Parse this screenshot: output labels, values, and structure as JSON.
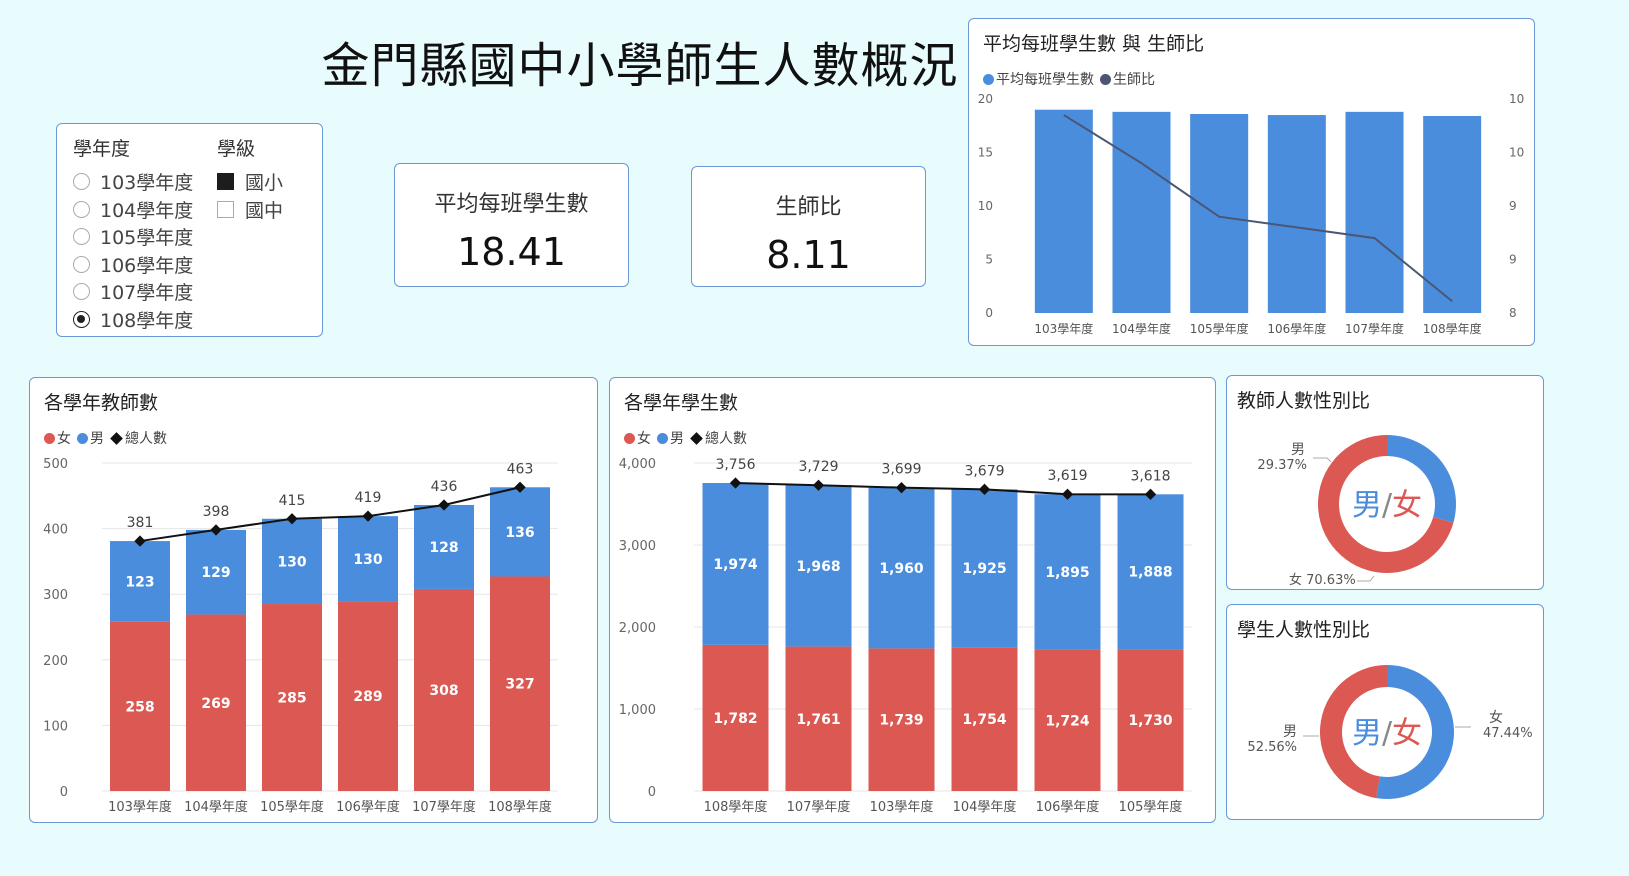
{
  "title": "金門縣國中小學師生人數概況",
  "slicer": {
    "year_header": "學年度",
    "years": [
      {
        "label": "103學年度",
        "selected": false
      },
      {
        "label": "104學年度",
        "selected": false
      },
      {
        "label": "105學年度",
        "selected": false
      },
      {
        "label": "106學年度",
        "selected": false
      },
      {
        "label": "107學年度",
        "selected": false
      },
      {
        "label": "108學年度",
        "selected": true
      }
    ],
    "level_header": "學級",
    "levels": [
      {
        "label": "國小",
        "checked": true
      },
      {
        "label": "國中",
        "checked": false
      }
    ]
  },
  "cards": {
    "avg_students": {
      "label": "平均每班學生數",
      "value": "18.41"
    },
    "ratio": {
      "label": "生師比",
      "value": "8.11"
    }
  },
  "colors": {
    "female": "#dc5852",
    "male": "#4a8ddd",
    "ratio_line": "#4a5674",
    "total_line": "#111111"
  },
  "charts": {
    "combo": {
      "title": "平均每班學生數 與 生師比",
      "legend": [
        "平均每班學生數",
        "生師比"
      ]
    },
    "teachers": {
      "title": "各學年教師數",
      "legend": [
        "女",
        "男",
        "總人數"
      ]
    },
    "students": {
      "title": "各學年學生數",
      "legend": [
        "女",
        "男",
        "總人數"
      ]
    },
    "teacher_gender": {
      "title": "教師人數性別比",
      "center_male": "男",
      "center_slash": "/",
      "center_female": "女"
    },
    "student_gender": {
      "title": "學生人數性別比",
      "center_male": "男",
      "center_slash": "/",
      "center_female": "女"
    }
  },
  "chart_data": [
    {
      "type": "bar",
      "title": "平均每班學生數 與 生師比",
      "categories": [
        "103學年度",
        "104學年度",
        "105學年度",
        "106學年度",
        "107學年度",
        "108學年度"
      ],
      "series": [
        {
          "name": "平均每班學生數",
          "type": "bar",
          "axis": "left",
          "values": [
            19.0,
            18.8,
            18.6,
            18.5,
            18.8,
            18.41
          ]
        },
        {
          "name": "生師比",
          "type": "line",
          "axis": "right",
          "values": [
            9.85,
            9.4,
            8.9,
            8.8,
            8.7,
            8.11
          ]
        }
      ],
      "y_left": {
        "ticks": [
          "0",
          "5",
          "10",
          "15",
          "20"
        ],
        "ylim": [
          0,
          20
        ]
      },
      "y_right": {
        "ticks": [
          "8",
          "9",
          "9",
          "10",
          "10"
        ],
        "ylim": [
          8,
          10
        ]
      }
    },
    {
      "type": "bar",
      "stacked": true,
      "title": "各學年教師數",
      "categories": [
        "103學年度",
        "104學年度",
        "105學年度",
        "106學年度",
        "107學年度",
        "108學年度"
      ],
      "series": [
        {
          "name": "女",
          "values": [
            258,
            269,
            285,
            289,
            308,
            327
          ],
          "labels": [
            "258",
            "269",
            "285",
            "289",
            "308",
            "327"
          ]
        },
        {
          "name": "男",
          "values": [
            123,
            129,
            130,
            130,
            128,
            136
          ],
          "labels": [
            "123",
            "129",
            "130",
            "130",
            "128",
            "136"
          ]
        },
        {
          "name": "總人數",
          "type": "line",
          "values": [
            381,
            398,
            415,
            419,
            436,
            463
          ],
          "labels": [
            "381",
            "398",
            "415",
            "419",
            "436",
            "463"
          ]
        }
      ],
      "yticks": [
        "0",
        "100",
        "200",
        "300",
        "400",
        "500"
      ],
      "ylim": [
        0,
        500
      ],
      "grid": true
    },
    {
      "type": "bar",
      "stacked": true,
      "title": "各學年學生數",
      "categories": [
        "108學年度",
        "107學年度",
        "103學年度",
        "104學年度",
        "106學年度",
        "105學年度"
      ],
      "series": [
        {
          "name": "女",
          "values": [
            1782,
            1761,
            1739,
            1754,
            1724,
            1730
          ],
          "labels": [
            "1,782",
            "1,761",
            "1,739",
            "1,754",
            "1,724",
            "1,730"
          ]
        },
        {
          "name": "男",
          "values": [
            1974,
            1968,
            1960,
            1925,
            1895,
            1888
          ],
          "labels": [
            "1,974",
            "1,968",
            "1,960",
            "1,925",
            "1,895",
            "1,888"
          ]
        },
        {
          "name": "總人數",
          "type": "line",
          "values": [
            3756,
            3729,
            3699,
            3679,
            3619,
            3618
          ],
          "labels": [
            "3,756",
            "3,729",
            "3,699",
            "3,679",
            "3,619",
            "3,618"
          ]
        }
      ],
      "yticks": [
        "0",
        "1,000",
        "2,000",
        "3,000",
        "4,000"
      ],
      "ylim": [
        0,
        4000
      ],
      "grid": true
    },
    {
      "type": "pie",
      "donut": true,
      "title": "教師人數性別比",
      "slices": [
        {
          "name": "男",
          "value": 29.37,
          "label": "29.37%"
        },
        {
          "name": "女",
          "value": 70.63,
          "label": "女 70.63%"
        }
      ]
    },
    {
      "type": "pie",
      "donut": true,
      "title": "學生人數性別比",
      "slices": [
        {
          "name": "男",
          "value": 52.56,
          "label": "52.56%"
        },
        {
          "name": "女",
          "value": 47.44,
          "label": "47.44%"
        }
      ]
    }
  ]
}
